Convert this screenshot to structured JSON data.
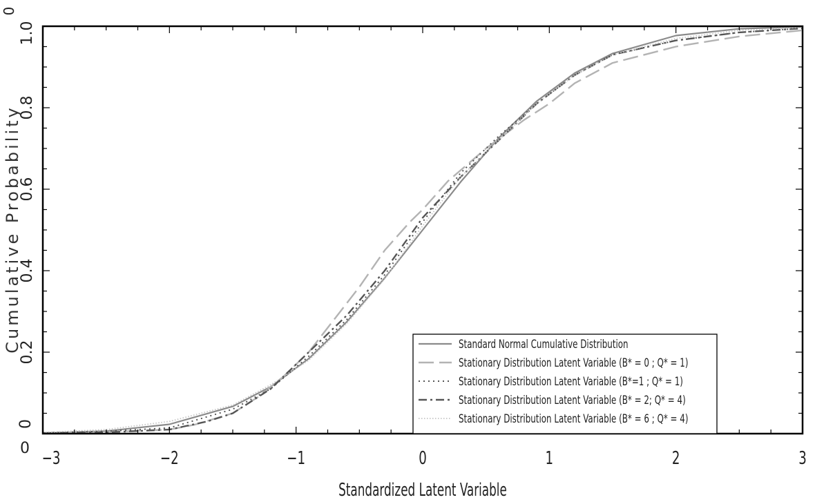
{
  "chart_data": {
    "type": "line",
    "xlabel": "Standardized Latent Variable",
    "ylabel": "Cumulative  Probability",
    "xlim": [
      -3,
      3
    ],
    "ylim": [
      0,
      1
    ],
    "x_ticks": [
      {
        "v": -3,
        "label": "−3"
      },
      {
        "v": -2,
        "label": "−2"
      },
      {
        "v": -1,
        "label": "−1"
      },
      {
        "v": 0,
        "label": "0"
      },
      {
        "v": 1,
        "label": "1"
      },
      {
        "v": 2,
        "label": "2"
      },
      {
        "v": 3,
        "label": "3"
      }
    ],
    "y_ticks": [
      {
        "v": 0,
        "label": "0"
      },
      {
        "v": 0.2,
        "label": "0.2"
      },
      {
        "v": 0.4,
        "label": "0.4"
      },
      {
        "v": 0.6,
        "label": "0.6"
      },
      {
        "v": 0.8,
        "label": "0.8"
      },
      {
        "v": 1,
        "label": "1.0"
      }
    ],
    "origin_labels": {
      "x": "0",
      "y": "0"
    },
    "legend_position": "bottom-right",
    "series": [
      {
        "name": "Standard Normal Cumulative Distribution",
        "style": "solid",
        "color": "#8a8a8a",
        "x": [
          -3,
          -2.5,
          -2,
          -1.5,
          -1.2,
          -0.9,
          -0.6,
          -0.3,
          0,
          0.3,
          0.6,
          0.9,
          1.2,
          1.5,
          2,
          2.5,
          3
        ],
        "y": [
          0.0013,
          0.0062,
          0.0228,
          0.0668,
          0.1151,
          0.1841,
          0.2743,
          0.3821,
          0.5,
          0.6179,
          0.7257,
          0.8159,
          0.8849,
          0.9332,
          0.9772,
          0.9938,
          0.9987
        ]
      },
      {
        "name": "Stationary Distribution Latent Variable (B* = 0 ; Q* = 1)",
        "style": "longdash",
        "color": "#b3b3b3",
        "x": [
          -3,
          -2.5,
          -2,
          -1.8,
          -1.5,
          -1.3,
          -1.1,
          -0.9,
          -0.7,
          -0.5,
          -0.3,
          -0.1,
          0,
          0.2,
          0.5,
          0.8,
          1,
          1.2,
          1.5,
          2,
          2.5,
          3
        ],
        "y": [
          0.002,
          0.004,
          0.01,
          0.022,
          0.05,
          0.09,
          0.14,
          0.2,
          0.28,
          0.36,
          0.45,
          0.52,
          0.55,
          0.62,
          0.7,
          0.77,
          0.81,
          0.86,
          0.91,
          0.95,
          0.975,
          0.99
        ]
      },
      {
        "name": "Stationary Distribution Latent Variable (B*=1 ; Q* = 1)",
        "style": "dotted",
        "color": "#555555",
        "x": [
          -3,
          -2.5,
          -2,
          -1.5,
          -1.2,
          -0.9,
          -0.6,
          -0.3,
          0,
          0.3,
          0.6,
          0.9,
          1.2,
          1.5,
          2,
          2.5,
          3
        ],
        "y": [
          0.002,
          0.006,
          0.014,
          0.06,
          0.11,
          0.19,
          0.28,
          0.39,
          0.52,
          0.64,
          0.73,
          0.81,
          0.88,
          0.93,
          0.965,
          0.985,
          0.995
        ]
      },
      {
        "name": "Stationary Distribution Latent Variable (B* = 2; Q* = 4)",
        "style": "dashdot",
        "color": "#555555",
        "x": [
          -3,
          -2.5,
          -2,
          -1.7,
          -1.5,
          -1.2,
          -0.9,
          -0.6,
          -0.3,
          0,
          0.3,
          0.6,
          0.9,
          1.2,
          1.5,
          2,
          2.5,
          3
        ],
        "y": [
          0.001,
          0.003,
          0.01,
          0.03,
          0.05,
          0.11,
          0.2,
          0.29,
          0.4,
          0.53,
          0.63,
          0.72,
          0.81,
          0.88,
          0.93,
          0.965,
          0.985,
          0.995
        ]
      },
      {
        "name": "Stationary Distribution Latent Variable (B* = 6 ; Q* = 4)",
        "style": "finedot",
        "color": "#c4c4c4",
        "x": [
          -3,
          -2.5,
          -2,
          -1.5,
          -1.2,
          -0.9,
          -0.6,
          -0.3,
          0,
          0.3,
          0.6,
          0.9,
          1.2,
          1.5,
          2,
          2.5,
          3
        ],
        "y": [
          0.003,
          0.01,
          0.03,
          0.07,
          0.12,
          0.18,
          0.27,
          0.38,
          0.51,
          0.63,
          0.72,
          0.81,
          0.88,
          0.93,
          0.97,
          0.99,
          0.997
        ]
      }
    ]
  }
}
